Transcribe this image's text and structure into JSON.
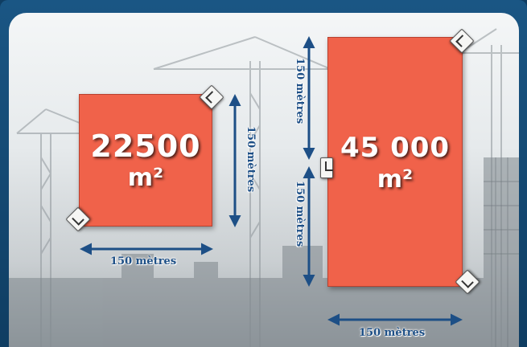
{
  "diagram": {
    "small_area": {
      "value": "22500",
      "unit": "m²"
    },
    "large_area": {
      "value": "45 000",
      "unit": "m²"
    },
    "dimensions": {
      "small_width": "150 mètres",
      "small_height": "150 mètres",
      "large_width": "150 mètres",
      "large_height_top": "150 mètres",
      "large_height_bottom": "150 mètres"
    }
  },
  "colors": {
    "frame": "#0f3d62",
    "area_fill": "#f0624a",
    "dimension_line": "#1d4f86"
  },
  "icons": [
    "corner-marker-icon",
    "construction-crane-background"
  ]
}
